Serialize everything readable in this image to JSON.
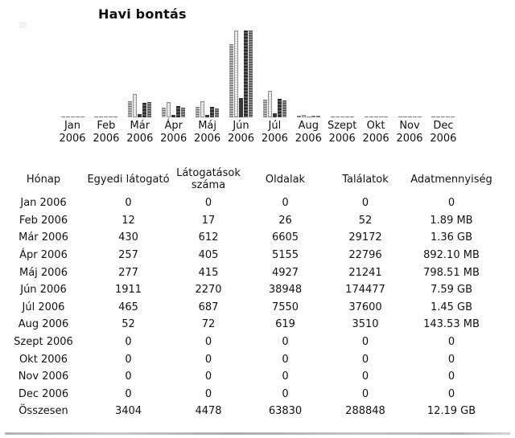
{
  "title": "Havi bontás",
  "chart_data": {
    "type": "bar",
    "title": "Havi bontás",
    "categories": [
      "Jan 2006",
      "Feb 2006",
      "Már 2006",
      "Ápr 2006",
      "Máj 2006",
      "Jún 2006",
      "Júl 2006",
      "Aug 2006",
      "Szept 2006",
      "Okt 2006",
      "Nov 2006",
      "Dec 2006"
    ],
    "x_tick_labels_line1": [
      "Jan",
      "Feb",
      "Már",
      "Ápr",
      "Máj",
      "Jún",
      "Júl",
      "Aug",
      "Szept",
      "Okt",
      "Nov",
      "Dec"
    ],
    "x_tick_labels_line2": [
      "2006",
      "2006",
      "2006",
      "2006",
      "2006",
      "2006",
      "2006",
      "2006",
      "2006",
      "2006",
      "2006",
      "2006"
    ],
    "series": [
      {
        "name": "Egyedi látogató",
        "key": "uv",
        "scale_group": "visits",
        "color": "#9a9a9a",
        "values": [
          0,
          12,
          430,
          257,
          277,
          1911,
          465,
          52,
          0,
          0,
          0,
          0
        ]
      },
      {
        "name": "Látogatások száma",
        "key": "visits",
        "scale_group": "visits",
        "color": "#e8e8e8",
        "values": [
          0,
          17,
          612,
          405,
          415,
          2270,
          687,
          72,
          0,
          0,
          0,
          0
        ]
      },
      {
        "name": "Oldalak",
        "key": "pages",
        "scale_group": "hits",
        "color": "#383838",
        "values": [
          0,
          26,
          6605,
          5155,
          4927,
          38948,
          7550,
          619,
          0,
          0,
          0,
          0
        ]
      },
      {
        "name": "Találatok",
        "key": "hits",
        "scale_group": "hits",
        "color": "#3f3f3f",
        "values": [
          0,
          52,
          29172,
          22796,
          21241,
          174477,
          37600,
          3510,
          0,
          0,
          0,
          0
        ]
      },
      {
        "name": "Adatmennyiség (GB)",
        "key": "bw",
        "scale_group": "bandwidth",
        "color": "#6a6a6a",
        "values": [
          0,
          0.0018,
          1.36,
          0.8712,
          0.7798,
          7.59,
          1.45,
          0.1402,
          0,
          0,
          0,
          0
        ]
      }
    ],
    "scale_maxima": {
      "visits": 2270,
      "hits": 174477,
      "bandwidth": 7.59
    },
    "ylim": [
      0,
      2270
    ],
    "grid": false,
    "legend": "none",
    "note": "grayscale grouped bars; zero values render as 1px baseline dashes"
  },
  "table": {
    "columns": [
      "Hónap",
      "Egyedi látogató",
      "Látogatások száma",
      "Oldalak",
      "Találatok",
      "Adatmennyiség"
    ],
    "rows": [
      [
        "Jan 2006",
        "0",
        "0",
        "0",
        "0",
        "0"
      ],
      [
        "Feb 2006",
        "12",
        "17",
        "26",
        "52",
        "1.89 MB"
      ],
      [
        "Már 2006",
        "430",
        "612",
        "6605",
        "29172",
        "1.36 GB"
      ],
      [
        "Ápr 2006",
        "257",
        "405",
        "5155",
        "22796",
        "892.10 MB"
      ],
      [
        "Máj 2006",
        "277",
        "415",
        "4927",
        "21241",
        "798.51 MB"
      ],
      [
        "Jún 2006",
        "1911",
        "2270",
        "38948",
        "174477",
        "7.59 GB"
      ],
      [
        "Júl 2006",
        "465",
        "687",
        "7550",
        "37600",
        "1.45 GB"
      ],
      [
        "Aug 2006",
        "52",
        "72",
        "619",
        "3510",
        "143.53 MB"
      ],
      [
        "Szept 2006",
        "0",
        "0",
        "0",
        "0",
        "0"
      ],
      [
        "Okt 2006",
        "0",
        "0",
        "0",
        "0",
        "0"
      ],
      [
        "Nov 2006",
        "0",
        "0",
        "0",
        "0",
        "0"
      ],
      [
        "Dec 2006",
        "0",
        "0",
        "0",
        "0",
        "0"
      ],
      [
        "Összesen",
        "3404",
        "4478",
        "63830",
        "288848",
        "12.19 GB"
      ]
    ]
  }
}
